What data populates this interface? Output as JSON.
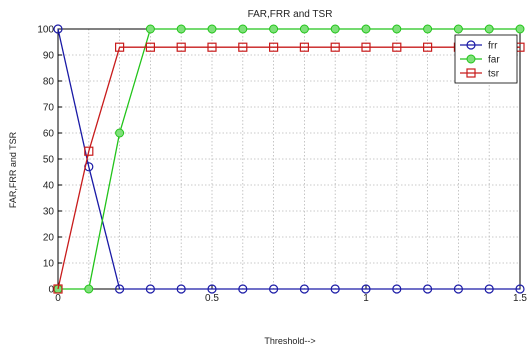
{
  "chart_data": {
    "type": "line",
    "title": "FAR,FRR and TSR",
    "xlabel": "Threshold-->",
    "ylabel": "FAR,FRR and TSR",
    "xlim": [
      0,
      1.5
    ],
    "ylim": [
      0,
      100
    ],
    "x_ticks": [
      0,
      0.5,
      1,
      1.5
    ],
    "x_tick_labels": [
      "0",
      "0.5",
      "1",
      "1.5"
    ],
    "y_ticks": [
      0,
      10,
      20,
      30,
      40,
      50,
      60,
      70,
      80,
      90,
      100
    ],
    "y_tick_labels": [
      "0",
      "10",
      "20",
      "30",
      "40",
      "50",
      "60",
      "70",
      "80",
      "90",
      "100"
    ],
    "grid": true,
    "legend_position": "top-right",
    "x": [
      0,
      0.1,
      0.2,
      0.3,
      0.4,
      0.5,
      0.6,
      0.7,
      0.8,
      0.9,
      1.0,
      1.1,
      1.2,
      1.3,
      1.4,
      1.5
    ],
    "series": [
      {
        "name": "frr",
        "color": "#1a1aa6",
        "marker": "circle",
        "values": [
          100,
          47,
          0,
          0,
          0,
          0,
          0,
          0,
          0,
          0,
          0,
          0,
          0,
          0,
          0,
          0
        ]
      },
      {
        "name": "far",
        "color": "#22c41a",
        "marker": "circle-filled",
        "values": [
          0,
          0,
          60,
          100,
          100,
          100,
          100,
          100,
          100,
          100,
          100,
          100,
          100,
          100,
          100,
          100
        ]
      },
      {
        "name": "tsr",
        "color": "#c81c1c",
        "marker": "square",
        "values": [
          0,
          53,
          93,
          93,
          93,
          93,
          93,
          93,
          93,
          93,
          93,
          93,
          93,
          93,
          93,
          93
        ]
      }
    ]
  }
}
